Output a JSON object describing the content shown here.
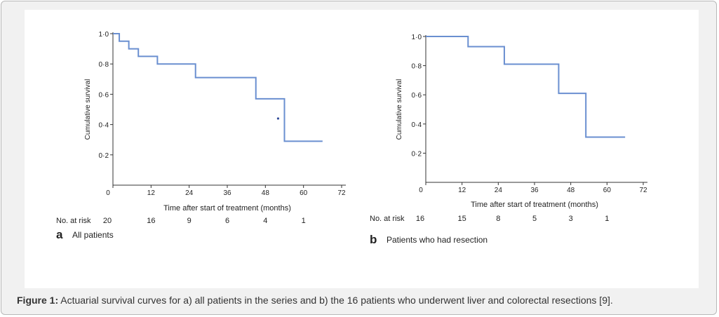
{
  "line_color": "#6a8fd0",
  "caption": {
    "label": "Figure 1:",
    "text": "Actuarial survival curves for a) all patients in the series and b) the 16 patients who underwent liver and colorectal resections [9]."
  },
  "chart_data": [
    {
      "type": "line",
      "step": true,
      "panel_letter": "a",
      "panel_title": "All patients",
      "ylabel": "Cumulative survival",
      "xlabel": "Time after start of treatment (months)",
      "x_ticks": [
        0,
        12,
        24,
        36,
        48,
        60,
        72
      ],
      "y_ticks": [
        "0·2",
        "0·4",
        "0·6",
        "0·8",
        "1·0"
      ],
      "y_tick_values": [
        0.2,
        0.4,
        0.6,
        0.8,
        1.0
      ],
      "xlim": [
        0,
        72
      ],
      "ylim": [
        0,
        1.0
      ],
      "series": [
        {
          "x": [
            0,
            2,
            5,
            8,
            14,
            26,
            45,
            54,
            66
          ],
          "y": [
            1.0,
            0.95,
            0.9,
            0.85,
            0.8,
            0.71,
            0.57,
            0.29,
            0.29
          ]
        }
      ],
      "censored": [
        {
          "x": 52,
          "y": 0.44
        }
      ],
      "risk_label": "No. at risk",
      "risk_values": [
        "20",
        "16",
        "9",
        "6",
        "4",
        "1"
      ]
    },
    {
      "type": "line",
      "step": true,
      "panel_letter": "b",
      "panel_title": "Patients who had resection",
      "ylabel": "Cumulative survival",
      "xlabel": "Time after start of treatment (months)",
      "x_ticks": [
        0,
        12,
        24,
        36,
        48,
        60,
        72
      ],
      "y_ticks": [
        "0·2",
        "0·4",
        "0·6",
        "0·8",
        "1·0"
      ],
      "y_tick_values": [
        0.2,
        0.4,
        0.6,
        0.8,
        1.0
      ],
      "xlim": [
        0,
        72
      ],
      "ylim": [
        0,
        1.0
      ],
      "series": [
        {
          "x": [
            0,
            14,
            26,
            44,
            53,
            66
          ],
          "y": [
            1.0,
            0.93,
            0.81,
            0.61,
            0.31,
            0.31
          ]
        }
      ],
      "censored": [],
      "risk_label": "No. at risk",
      "risk_values": [
        "16",
        "15",
        "8",
        "5",
        "3",
        "1"
      ]
    }
  ]
}
